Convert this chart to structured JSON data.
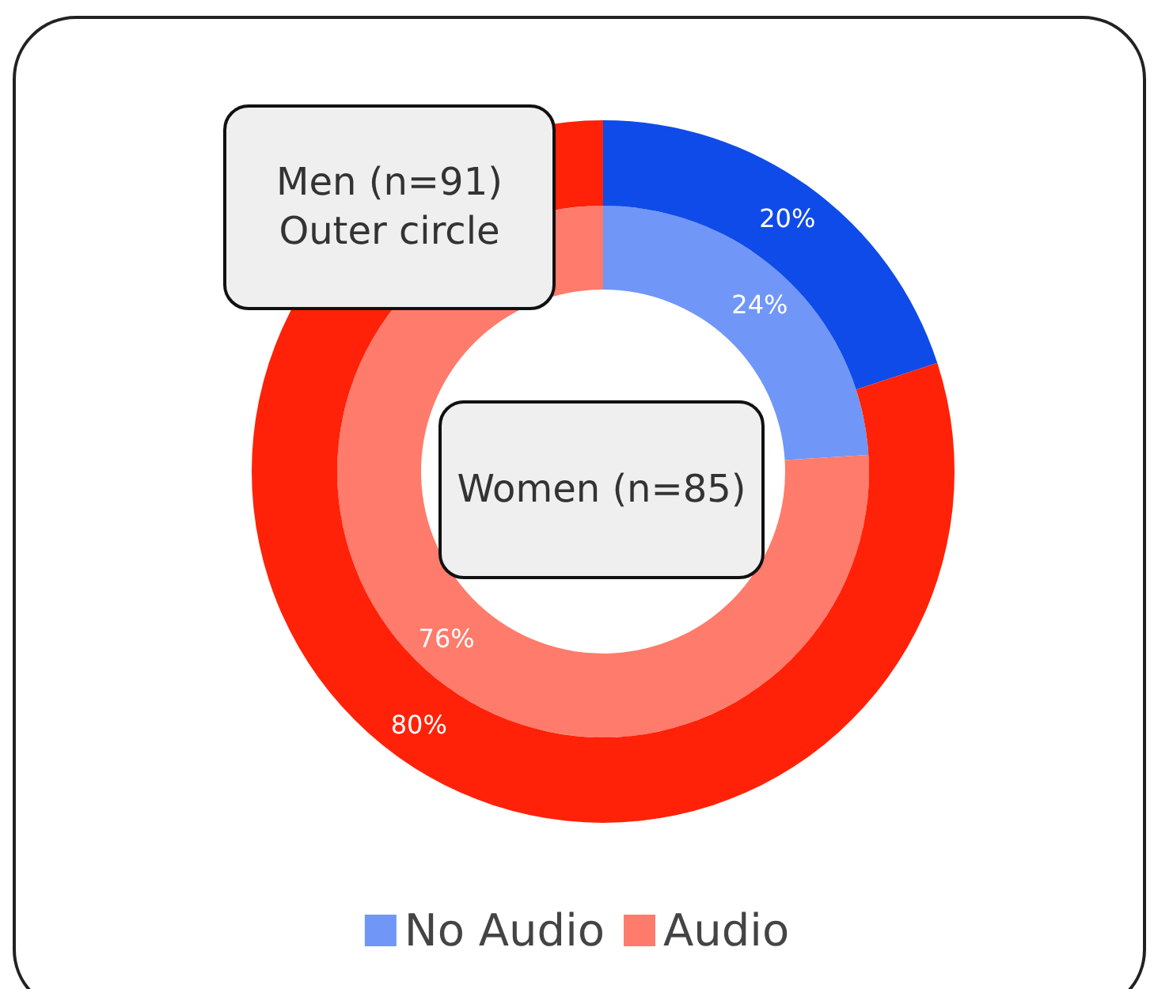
{
  "chart_data": {
    "type": "donut",
    "categories": [
      "No Audio",
      "Audio"
    ],
    "series": [
      {
        "values": [
          24,
          76
        ],
        "colors": [
          "#7096f8",
          "#ff7b6b"
        ],
        "value_labels": [
          "24%",
          "76%"
        ]
      },
      {
        "values": [
          20,
          80
        ],
        "colors": [
          "#0f4be8",
          "#ff2208"
        ],
        "value_labels": [
          "20%",
          "80%"
        ]
      }
    ],
    "annotations": [
      "Men (n=91)\nOuter circle",
      "Women (n=85)"
    ],
    "legend": "bottom"
  }
}
